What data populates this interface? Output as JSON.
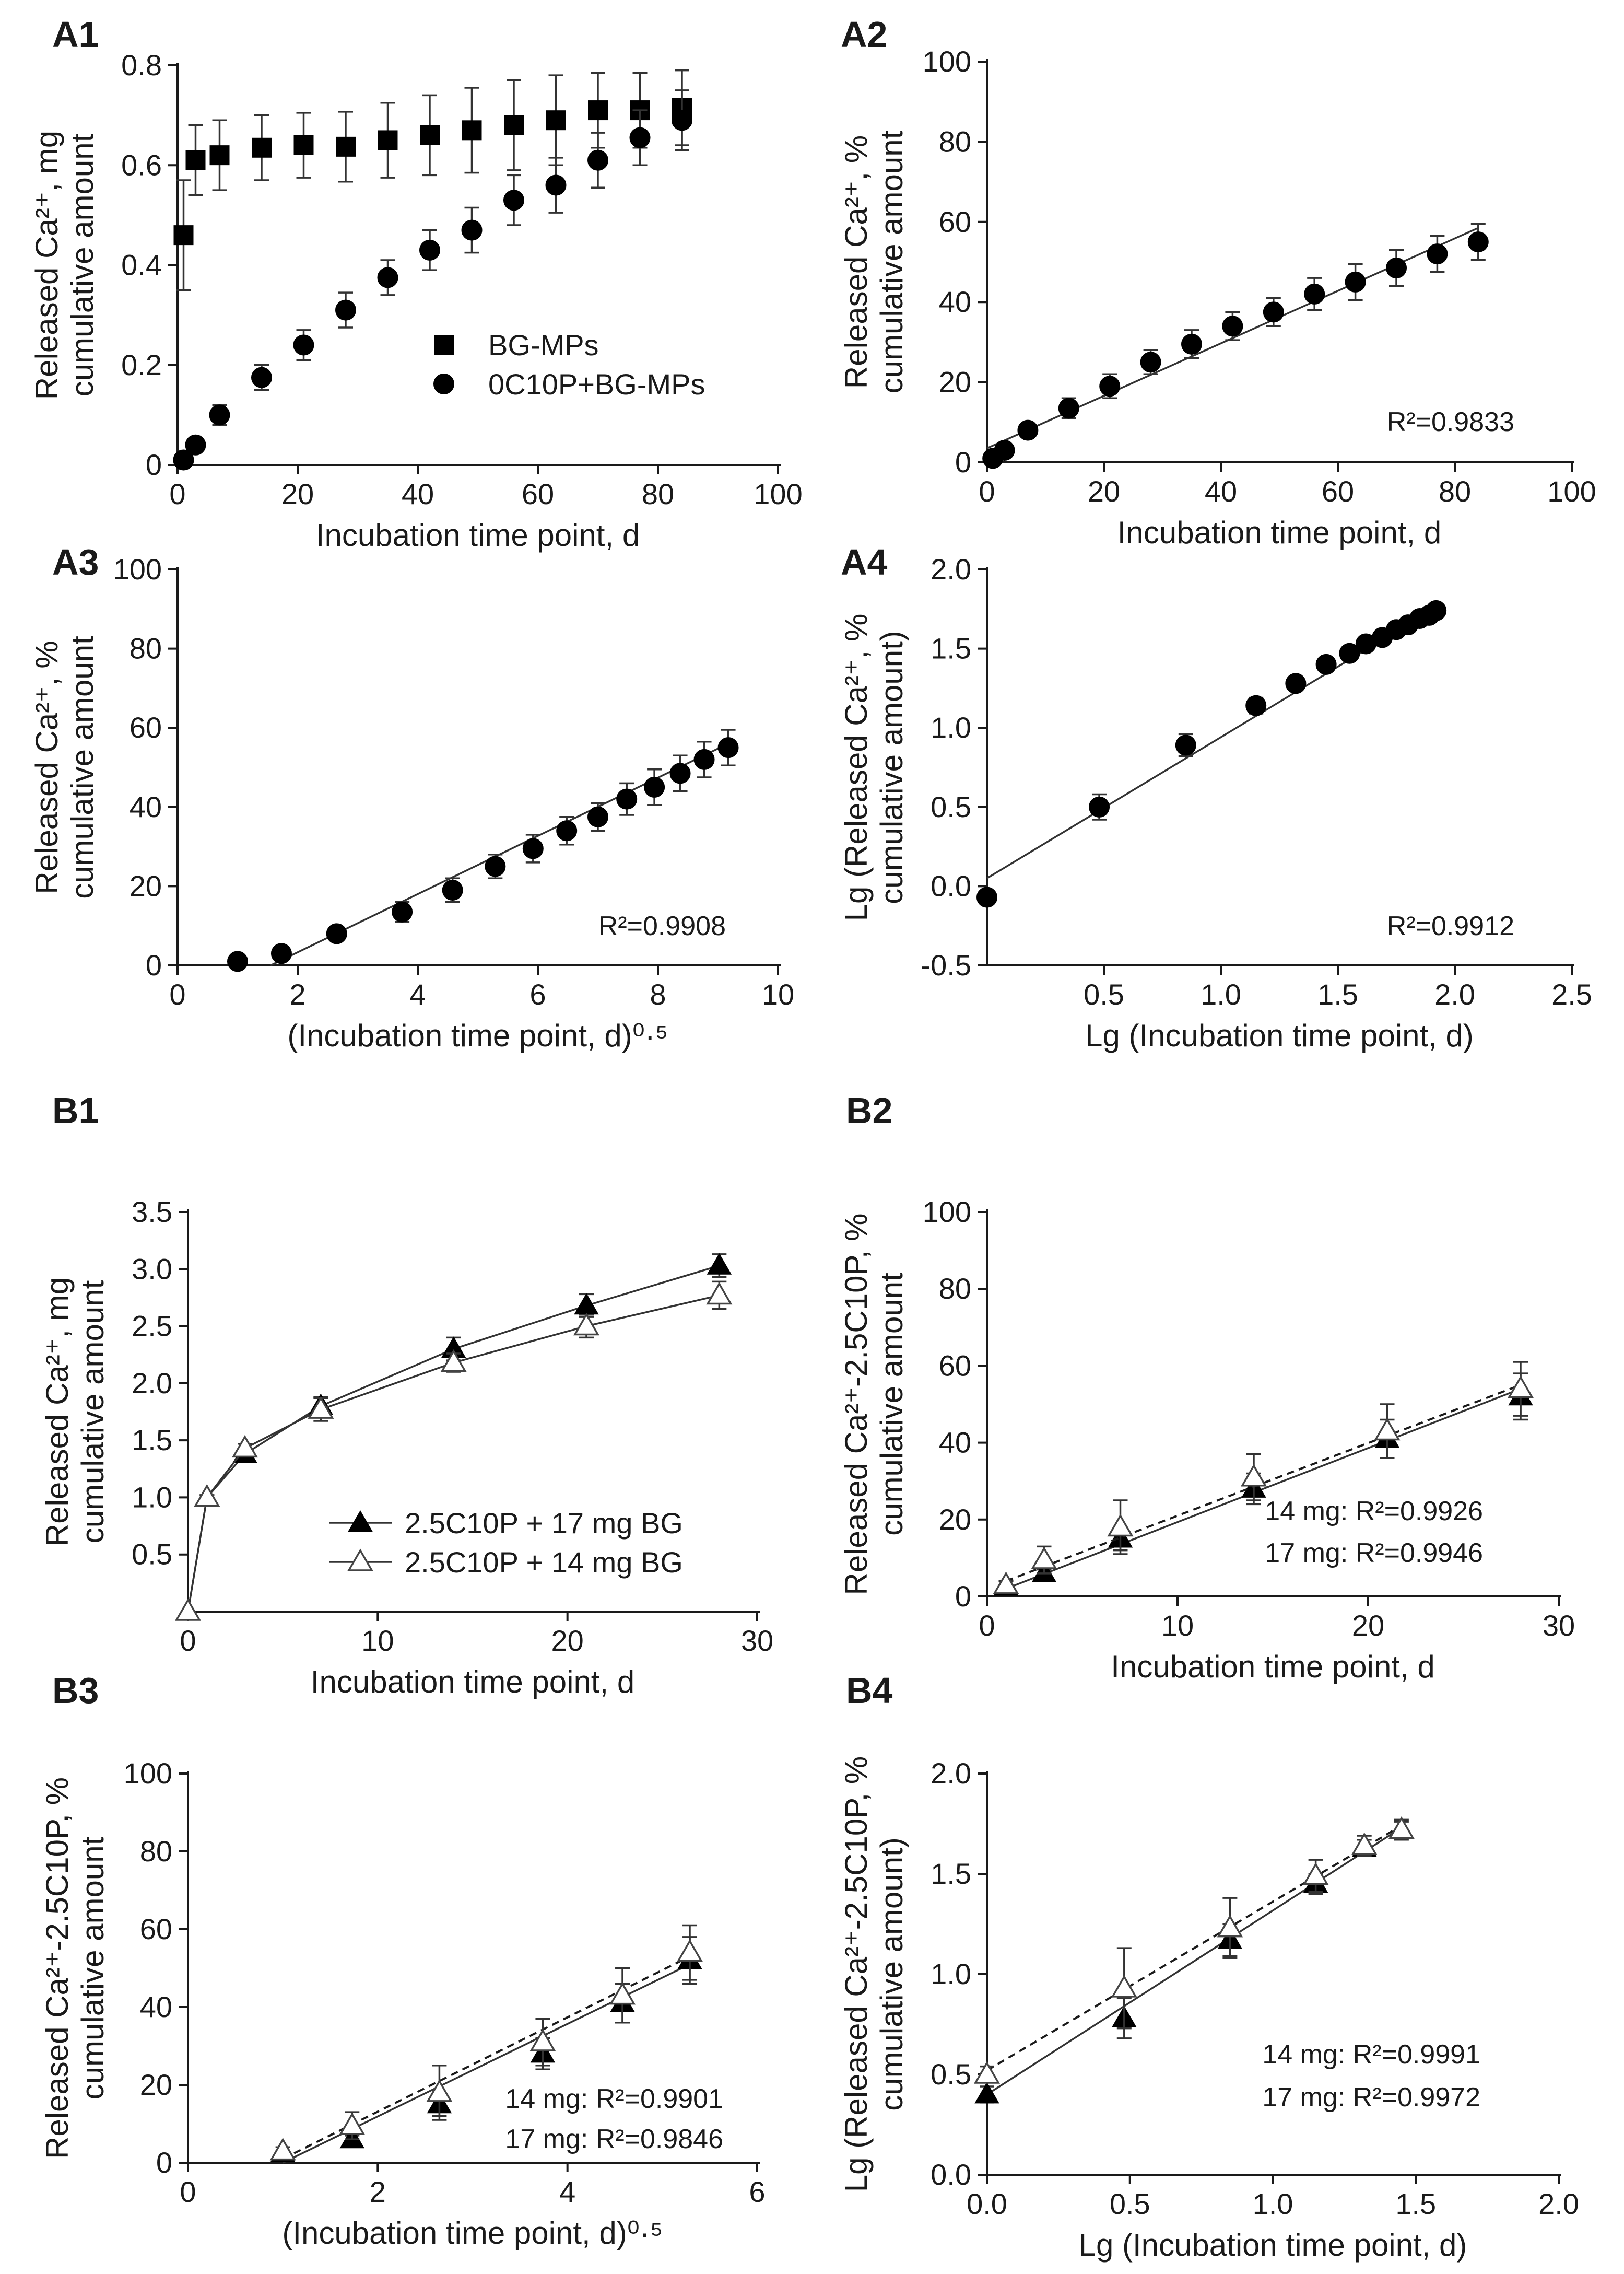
{
  "chart_data": [
    {
      "id": "A1",
      "panel_label": "A1",
      "type": "scatter",
      "xlabel": "Incubation time point, d",
      "ylabel_lines": [
        "Released Ca²⁺, mg",
        "cumulative amount"
      ],
      "xlim": [
        0,
        100
      ],
      "ylim": [
        0,
        0.8
      ],
      "xticks": [
        0,
        20,
        40,
        60,
        80,
        100
      ],
      "yticks": [
        0,
        0.2,
        0.4,
        0.6,
        0.8
      ],
      "xtick_labels": [
        "0",
        "20",
        "40",
        "60",
        "80",
        "100"
      ],
      "ytick_labels": [
        "0",
        "0.2",
        "0.4",
        "0.6",
        "0.8"
      ],
      "series": [
        {
          "name": "BG-MPs",
          "marker": "square",
          "x": [
            1,
            3,
            7,
            14,
            21,
            28,
            35,
            42,
            49,
            56,
            63,
            70,
            77,
            84
          ],
          "y": [
            0.46,
            0.61,
            0.62,
            0.635,
            0.64,
            0.637,
            0.65,
            0.66,
            0.67,
            0.68,
            0.69,
            0.71,
            0.71,
            0.715
          ],
          "err": [
            0.11,
            0.07,
            0.07,
            0.065,
            0.065,
            0.07,
            0.075,
            0.08,
            0.085,
            0.09,
            0.09,
            0.075,
            0.075,
            0.075
          ]
        },
        {
          "name": "0C10P+BG-MPs",
          "marker": "circle",
          "x": [
            1,
            3,
            7,
            14,
            21,
            28,
            35,
            42,
            49,
            56,
            63,
            70,
            77,
            84
          ],
          "y": [
            0.01,
            0.04,
            0.1,
            0.175,
            0.24,
            0.31,
            0.375,
            0.43,
            0.47,
            0.53,
            0.56,
            0.61,
            0.655,
            0.69
          ],
          "err": [
            0.005,
            0.008,
            0.02,
            0.025,
            0.03,
            0.035,
            0.035,
            0.04,
            0.045,
            0.05,
            0.055,
            0.055,
            0.055,
            0.06
          ]
        }
      ],
      "legend": "center-left"
    },
    {
      "id": "A2",
      "panel_label": "A2",
      "type": "scatter",
      "xlabel": "Incubation time point, d",
      "ylabel_lines": [
        "Released Ca²⁺, %",
        "cumulative amount"
      ],
      "xlim": [
        0,
        100
      ],
      "ylim": [
        0,
        100
      ],
      "xticks": [
        0,
        20,
        40,
        60,
        80,
        100
      ],
      "yticks": [
        0,
        20,
        40,
        60,
        80,
        100
      ],
      "xtick_labels": [
        "0",
        "20",
        "40",
        "60",
        "80",
        "100"
      ],
      "ytick_labels": [
        "0",
        "20",
        "40",
        "60",
        "80",
        "100"
      ],
      "series": [
        {
          "name": "0C10P+BG-MPs",
          "marker": "circle",
          "x": [
            1,
            3,
            7,
            14,
            21,
            28,
            35,
            42,
            49,
            56,
            63,
            70,
            77,
            84
          ],
          "y": [
            1,
            3,
            8,
            13.5,
            19,
            25,
            29.5,
            34,
            37.5,
            42,
            45,
            48.5,
            52,
            55
          ],
          "err": [
            0.5,
            1,
            1.5,
            2.5,
            3,
            3,
            3.5,
            3.5,
            3.5,
            4,
            4.5,
            4.5,
            4.5,
            4.5
          ],
          "fit": [
            [
              0,
              3.5
            ],
            [
              84,
              58.5
            ]
          ]
        }
      ],
      "annotations": [
        {
          "text": "R²=0.9833"
        }
      ]
    },
    {
      "id": "A3",
      "panel_label": "A3",
      "type": "scatter",
      "xlabel": "(Incubation time point, d)⁰·⁵",
      "ylabel_lines": [
        "Released Ca²⁺, %",
        "cumulative amount"
      ],
      "xlim": [
        0,
        10
      ],
      "ylim": [
        0,
        100
      ],
      "xticks": [
        0,
        2,
        4,
        6,
        8,
        10
      ],
      "yticks": [
        0,
        20,
        40,
        60,
        80,
        100
      ],
      "xtick_labels": [
        "0",
        "2",
        "4",
        "6",
        "8",
        "10"
      ],
      "ytick_labels": [
        "0",
        "20",
        "40",
        "60",
        "80",
        "100"
      ],
      "series": [
        {
          "name": "0C10P+BG-MPs",
          "marker": "circle",
          "x": [
            1,
            1.73,
            2.65,
            3.74,
            4.58,
            5.29,
            5.92,
            6.48,
            7.0,
            7.48,
            7.94,
            8.37,
            8.77,
            9.17
          ],
          "y": [
            1,
            3,
            8,
            13.5,
            19,
            25,
            29.5,
            34,
            37.5,
            42,
            45,
            48.5,
            52,
            55
          ],
          "err": [
            0.5,
            1,
            1.5,
            2.5,
            3,
            3,
            3.5,
            3.5,
            3.5,
            4,
            4.5,
            4.5,
            4.5,
            4.5
          ],
          "fit": [
            [
              1.55,
              0
            ],
            [
              9.17,
              56
            ]
          ]
        }
      ],
      "annotations": [
        {
          "text": "R²=0.9908"
        }
      ]
    },
    {
      "id": "A4",
      "panel_label": "A4",
      "type": "scatter",
      "xlabel": "Lg (Incubation time point, d)",
      "ylabel_lines": [
        "Lg (Released Ca²⁺, %",
        "cumulative amount)"
      ],
      "xlim": [
        0,
        2.5
      ],
      "ylim": [
        -0.5,
        2.0
      ],
      "xticks": [
        0.5,
        1.0,
        1.5,
        2.0,
        2.5
      ],
      "yticks": [
        -0.5,
        0.0,
        0.5,
        1.0,
        1.5,
        2.0
      ],
      "xtick_labels": [
        "0.5",
        "1.0",
        "1.5",
        "2.0",
        "2.5"
      ],
      "ytick_labels": [
        "-0.5",
        "0.0",
        "0.5",
        "1.0",
        "1.5",
        "2.0"
      ],
      "series": [
        {
          "name": "0C10P+BG-MPs",
          "marker": "circle",
          "x": [
            0,
            0.48,
            0.85,
            1.15,
            1.32,
            1.45,
            1.55,
            1.62,
            1.69,
            1.75,
            1.8,
            1.85,
            1.89,
            1.92
          ],
          "y": [
            -0.07,
            0.5,
            0.89,
            1.14,
            1.28,
            1.4,
            1.47,
            1.53,
            1.57,
            1.62,
            1.65,
            1.69,
            1.71,
            1.74
          ],
          "err": [
            0,
            0.08,
            0.07,
            0.05,
            0.04,
            0.04,
            0.04,
            0.03,
            0.03,
            0.03,
            0.03,
            0.03,
            0.03,
            0.03
          ],
          "fit": [
            [
              0,
              0.05
            ],
            [
              1.92,
              1.76
            ]
          ]
        }
      ],
      "annotations": [
        {
          "text": "R²=0.9912"
        }
      ]
    },
    {
      "id": "B1",
      "panel_label": "B1",
      "type": "line",
      "xlabel": "Incubation time point, d",
      "ylabel_lines": [
        "Released Ca²⁺, mg",
        "cumulative amount"
      ],
      "xlim": [
        0,
        30
      ],
      "ylim": [
        0,
        3.5
      ],
      "xticks": [
        0,
        10,
        20,
        30
      ],
      "yticks": [
        0.5,
        1.0,
        1.5,
        2.0,
        2.5,
        3.0,
        3.5
      ],
      "xtick_labels": [
        "0",
        "10",
        "20",
        "30"
      ],
      "ytick_labels": [
        "0.5",
        "1.0",
        "1.5",
        "2.0",
        "2.5",
        "3.0",
        "3.5"
      ],
      "series": [
        {
          "name": "2.5C10P + 17 mg BG",
          "marker": "triangle-filled",
          "x": [
            0,
            1,
            3,
            7,
            14,
            21,
            28
          ],
          "y": [
            0,
            1.0,
            1.38,
            1.8,
            2.3,
            2.68,
            3.03
          ],
          "err": [
            0,
            0.02,
            0.04,
            0.08,
            0.1,
            0.1,
            0.1
          ]
        },
        {
          "name": "2.5C10P + 14 mg BG",
          "marker": "triangle-open",
          "x": [
            0,
            1,
            3,
            7,
            14,
            21,
            28
          ],
          "y": [
            0,
            1.0,
            1.43,
            1.77,
            2.18,
            2.5,
            2.77
          ],
          "err": [
            0,
            0.02,
            0.04,
            0.1,
            0.08,
            0.1,
            0.12
          ]
        }
      ],
      "legend": "bottom-right"
    },
    {
      "id": "B2",
      "panel_label": "B2",
      "type": "scatter",
      "xlabel": "Incubation time point, d",
      "ylabel_lines": [
        "Released Ca²⁺-2.5C10P, %",
        "cumulative amount"
      ],
      "xlim": [
        0,
        30
      ],
      "ylim": [
        0,
        100
      ],
      "xticks": [
        0,
        10,
        20,
        30
      ],
      "yticks": [
        0,
        20,
        40,
        60,
        80,
        100
      ],
      "xtick_labels": [
        "0",
        "10",
        "20",
        "30"
      ],
      "ytick_labels": [
        "0",
        "20",
        "40",
        "60",
        "80",
        "100"
      ],
      "series": [
        {
          "name": "17 mg",
          "marker": "triangle-filled",
          "x": [
            1,
            3,
            7,
            14,
            21,
            28
          ],
          "y": [
            2.5,
            6,
            15,
            28,
            41,
            52
          ],
          "err": [
            0.5,
            1,
            3,
            4,
            5,
            6
          ],
          "fit": [
            [
              1,
              2
            ],
            [
              28,
              54
            ]
          ],
          "fit_style": "solid"
        },
        {
          "name": "14 mg",
          "marker": "triangle-open",
          "x": [
            1,
            3,
            7,
            14,
            21,
            28
          ],
          "y": [
            3,
            9.5,
            18,
            31,
            43,
            54
          ],
          "err": [
            1,
            3.5,
            7,
            6,
            7,
            7
          ],
          "fit": [
            [
              1,
              4
            ],
            [
              28,
              55
            ]
          ],
          "fit_style": "dashed"
        }
      ],
      "annotations": [
        {
          "text": "14 mg: R²=0.9926"
        },
        {
          "text": "17 mg: R²=0.9946"
        }
      ]
    },
    {
      "id": "B3",
      "panel_label": "B3",
      "type": "scatter",
      "xlabel": "(Incubation time point, d)⁰·⁵",
      "ylabel_lines": [
        "Released Ca²⁺-2.5C10P, %",
        "cumulative amount"
      ],
      "xlim": [
        0,
        6
      ],
      "ylim": [
        0,
        100
      ],
      "xticks": [
        0,
        2,
        4,
        6
      ],
      "yticks": [
        0,
        20,
        40,
        60,
        80,
        100
      ],
      "xtick_labels": [
        "0",
        "2",
        "4",
        "6"
      ],
      "ytick_labels": [
        "0",
        "20",
        "40",
        "60",
        "80",
        "100"
      ],
      "series": [
        {
          "name": "17 mg",
          "marker": "triangle-filled",
          "x": [
            1.0,
            1.73,
            2.65,
            3.74,
            4.58,
            5.29
          ],
          "y": [
            2.5,
            6,
            15,
            28,
            41,
            52
          ],
          "err": [
            0.5,
            1,
            3,
            4,
            5,
            6
          ],
          "fit": [
            [
              1.0,
              0
            ],
            [
              5.29,
              51
            ]
          ],
          "fit_style": "solid"
        },
        {
          "name": "14 mg",
          "marker": "triangle-open",
          "x": [
            1.0,
            1.73,
            2.65,
            3.74,
            4.58,
            5.29
          ],
          "y": [
            3,
            9.5,
            18,
            31,
            43,
            54
          ],
          "err": [
            1,
            3.5,
            7,
            6,
            7,
            7
          ],
          "fit": [
            [
              1.0,
              1
            ],
            [
              5.29,
              53
            ]
          ],
          "fit_style": "dashed"
        }
      ],
      "annotations": [
        {
          "text": "14 mg: R²=0.9901"
        },
        {
          "text": "17 mg: R²=0.9846"
        }
      ]
    },
    {
      "id": "B4",
      "panel_label": "B4",
      "type": "scatter",
      "xlabel": "Lg (Incubation time point, d)",
      "ylabel_lines": [
        "Lg (Released Ca²⁺-2.5C10P, %",
        "cumulative amount)"
      ],
      "xlim": [
        0,
        2.0
      ],
      "ylim": [
        0,
        2.0
      ],
      "xticks": [
        0,
        0.5,
        1.0,
        1.5,
        2.0
      ],
      "yticks": [
        0,
        0.5,
        1.0,
        1.5,
        2.0
      ],
      "xtick_labels": [
        "0.0",
        "0.5",
        "1.0",
        "1.5",
        "2.0"
      ],
      "ytick_labels": [
        "0.0",
        "0.5",
        "1.0",
        "1.5",
        "2.0"
      ],
      "series": [
        {
          "name": "17 mg",
          "marker": "triangle-filled",
          "x": [
            0,
            0.48,
            0.85,
            1.15,
            1.32,
            1.45
          ],
          "y": [
            0.4,
            0.78,
            1.17,
            1.45,
            1.63,
            1.72
          ],
          "err": [
            0.04,
            0.1,
            0.08,
            0.05,
            0.04,
            0.04
          ],
          "fit": [
            [
              0,
              0.4
            ],
            [
              1.45,
              1.73
            ]
          ],
          "fit_style": "solid"
        },
        {
          "name": "14 mg",
          "marker": "triangle-open",
          "x": [
            0,
            0.48,
            0.85,
            1.15,
            1.32,
            1.45
          ],
          "y": [
            0.5,
            0.93,
            1.23,
            1.49,
            1.64,
            1.72
          ],
          "err": [
            0.04,
            0.2,
            0.15,
            0.08,
            0.05,
            0.05
          ],
          "fit": [
            [
              0,
              0.52
            ],
            [
              1.45,
              1.74
            ]
          ],
          "fit_style": "dashed"
        }
      ],
      "annotations": [
        {
          "text": "14 mg: R²=0.9991"
        },
        {
          "text": "17 mg: R²=0.9972"
        }
      ]
    }
  ]
}
